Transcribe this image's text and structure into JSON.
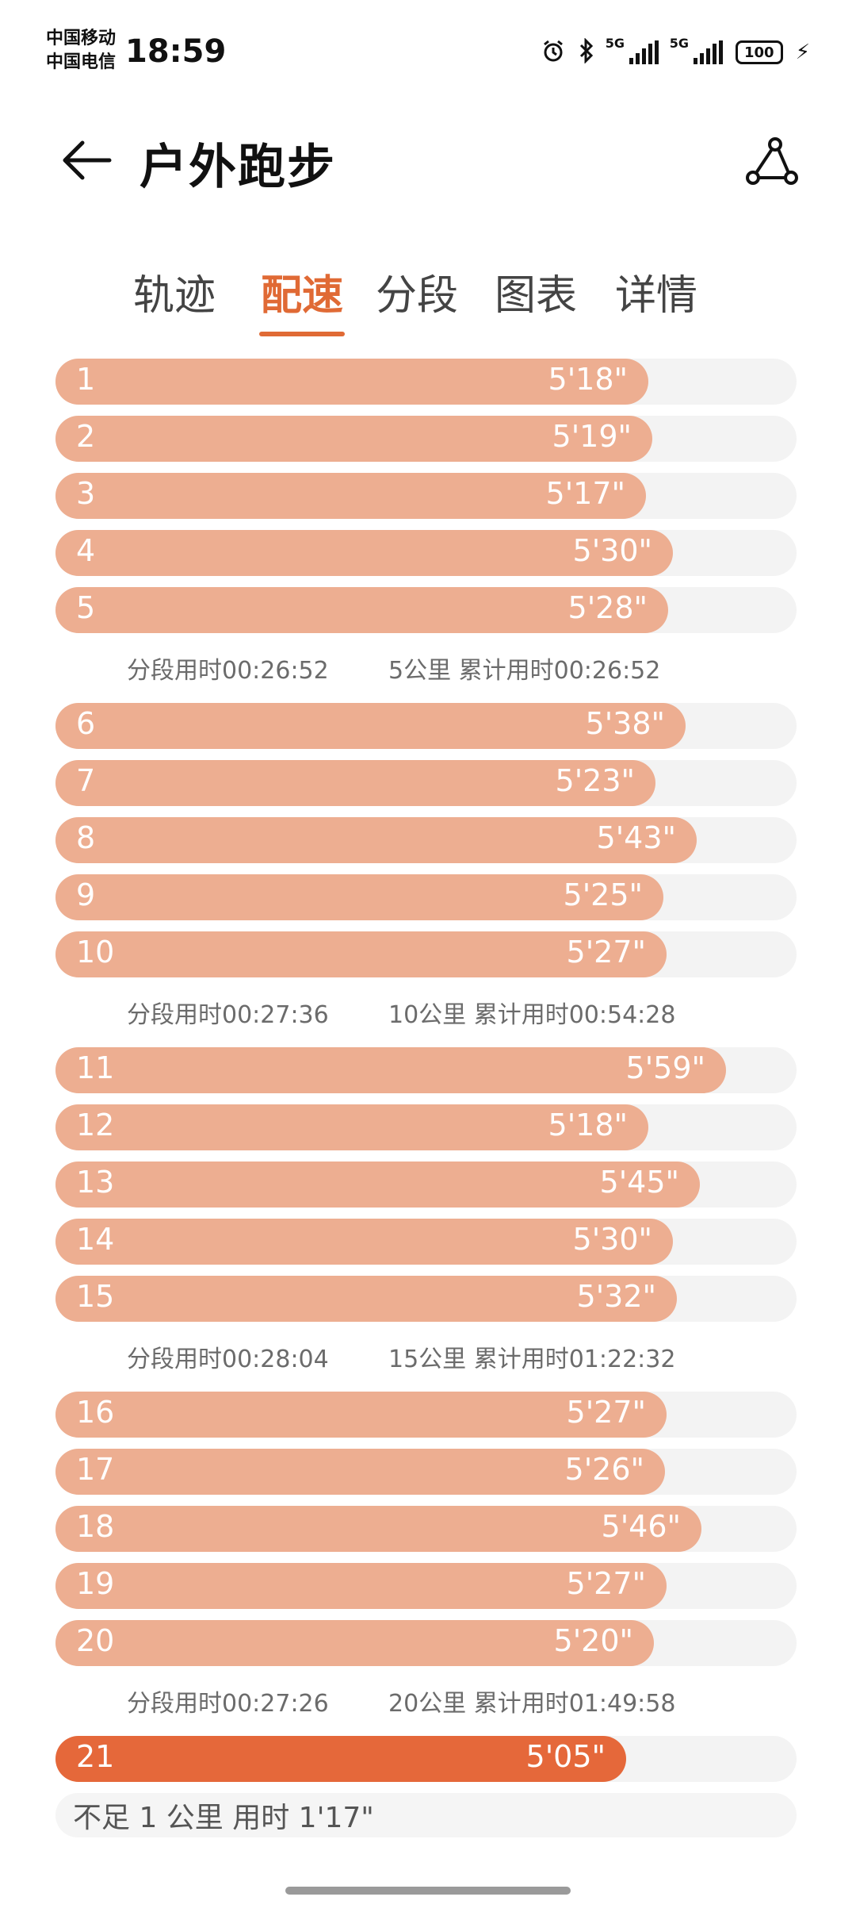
{
  "status_bar": {
    "carrier1": "中国移动",
    "carrier2": "中国电信",
    "time": "18:59",
    "signal1_tag": "5G",
    "signal2_tag": "5G",
    "battery": "100"
  },
  "header": {
    "title": "户外跑步"
  },
  "tabs": [
    {
      "label": "轨迹",
      "active": false
    },
    {
      "label": "配速",
      "active": true
    },
    {
      "label": "分段",
      "active": false
    },
    {
      "label": "图表",
      "active": false
    },
    {
      "label": "详情",
      "active": false
    }
  ],
  "colors": {
    "accent": "#e06a35",
    "bar": "#edae91",
    "bar_highlight": "#e5683a",
    "track": "#f3f3f3"
  },
  "splits": [
    {
      "km": "1",
      "pace": "5'18\"",
      "level": 0.8
    },
    {
      "km": "2",
      "pace": "5'19\"",
      "level": 0.805
    },
    {
      "km": "3",
      "pace": "5'17\"",
      "level": 0.797
    },
    {
      "km": "4",
      "pace": "5'30\"",
      "level": 0.833
    },
    {
      "km": "5",
      "pace": "5'28\"",
      "level": 0.827
    },
    {
      "summary": true,
      "segment": "分段用时00:26:52",
      "cumulative": "5公里 累计用时00:26:52"
    },
    {
      "km": "6",
      "pace": "5'38\"",
      "level": 0.85
    },
    {
      "km": "7",
      "pace": "5'23\"",
      "level": 0.81
    },
    {
      "km": "8",
      "pace": "5'43\"",
      "level": 0.865
    },
    {
      "km": "9",
      "pace": "5'25\"",
      "level": 0.82
    },
    {
      "km": "10",
      "pace": "5'27\"",
      "level": 0.825
    },
    {
      "summary": true,
      "segment": "分段用时00:27:36",
      "cumulative": "10公里 累计用时00:54:28"
    },
    {
      "km": "11",
      "pace": "5'59\"",
      "level": 0.905
    },
    {
      "km": "12",
      "pace": "5'18\"",
      "level": 0.8
    },
    {
      "km": "13",
      "pace": "5'45\"",
      "level": 0.87
    },
    {
      "km": "14",
      "pace": "5'30\"",
      "level": 0.833
    },
    {
      "km": "15",
      "pace": "5'32\"",
      "level": 0.838
    },
    {
      "summary": true,
      "segment": "分段用时00:28:04",
      "cumulative": "15公里 累计用时01:22:32"
    },
    {
      "km": "16",
      "pace": "5'27\"",
      "level": 0.825
    },
    {
      "km": "17",
      "pace": "5'26\"",
      "level": 0.822
    },
    {
      "km": "18",
      "pace": "5'46\"",
      "level": 0.872
    },
    {
      "km": "19",
      "pace": "5'27\"",
      "level": 0.825
    },
    {
      "km": "20",
      "pace": "5'20\"",
      "level": 0.807
    },
    {
      "summary": true,
      "segment": "分段用时00:27:26",
      "cumulative": "20公里 累计用时01:49:58"
    },
    {
      "km": "21",
      "pace": "5'05\"",
      "level": 0.77,
      "highlight": true
    }
  ],
  "partial_note": "不足 1 公里 用时 1'17\""
}
